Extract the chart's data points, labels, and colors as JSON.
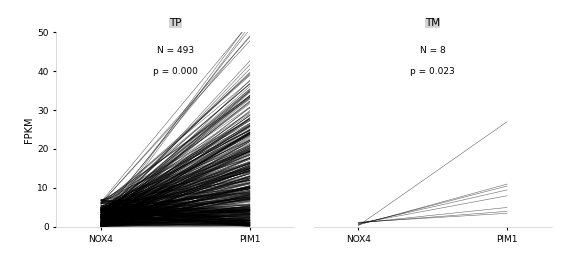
{
  "panel1_title": "TP",
  "panel1_n": "N = 493",
  "panel1_p": "p = 0.000",
  "panel2_title": "TM",
  "panel2_n": "N = 8",
  "panel2_p": "p = 0.023",
  "ylabel": "FPKM",
  "xlabel1": "NOX4",
  "xlabel2": "PIM1",
  "ylim": [
    0,
    50
  ],
  "header_color": "#d4d4d4",
  "panel_bg": "#ffffff",
  "line_color": "#000000",
  "line_alpha": 0.6,
  "line_width": 0.4,
  "panel2_nox4": [
    0.3,
    0.5,
    0.6,
    0.8,
    0.9,
    1.0,
    1.1,
    1.2
  ],
  "panel2_pim1": [
    27.0,
    11.0,
    10.5,
    9.5,
    8.0,
    5.0,
    4.0,
    3.5
  ]
}
